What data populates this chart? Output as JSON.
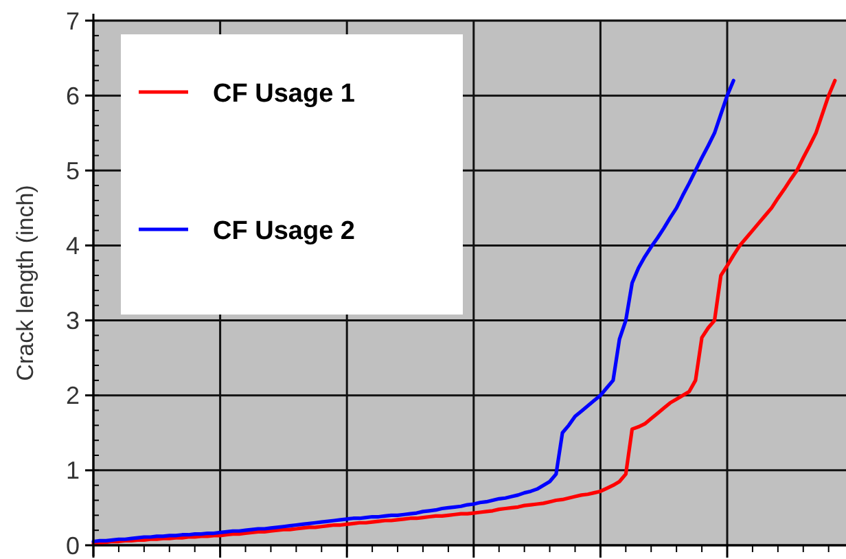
{
  "chart_data": {
    "type": "line",
    "ylabel": "Crack length (inch)",
    "categories": [
      null,
      null,
      null,
      null,
      null,
      null,
      null,
      null,
      null,
      null,
      null,
      null,
      null,
      null,
      null,
      null,
      null,
      null,
      null,
      null,
      null,
      null,
      null,
      null,
      null,
      null,
      null,
      null,
      null,
      null,
      null,
      null,
      null,
      null,
      null,
      null,
      null,
      null,
      null,
      null,
      null,
      null,
      null,
      null,
      null,
      null,
      null,
      null,
      null,
      null,
      null,
      null,
      null,
      null,
      null,
      null,
      null,
      null,
      null,
      null,
      null,
      null,
      null,
      null,
      null,
      null,
      null,
      null,
      null,
      null,
      null,
      null,
      null,
      null,
      null,
      null,
      null,
      null,
      null,
      null,
      null,
      null,
      null,
      null,
      null,
      null,
      null,
      null,
      null,
      null,
      null,
      null,
      null,
      null,
      null,
      null,
      null,
      null,
      null,
      null,
      null,
      null,
      null,
      null,
      null,
      null,
      null,
      null,
      null,
      null,
      null,
      null,
      null,
      null,
      null,
      null,
      null,
      null,
      null
    ],
    "series": [
      {
        "name": "CF Usage 1",
        "color": "#ff0000",
        "values": [
          0.03,
          0.03,
          0.04,
          0.05,
          0.05,
          0.06,
          0.06,
          0.07,
          0.07,
          0.08,
          0.08,
          0.09,
          0.09,
          0.1,
          0.1,
          0.11,
          0.11,
          0.12,
          0.12,
          0.13,
          0.13,
          0.14,
          0.15,
          0.15,
          0.16,
          0.17,
          0.18,
          0.18,
          0.19,
          0.2,
          0.21,
          0.21,
          0.22,
          0.23,
          0.24,
          0.24,
          0.25,
          0.26,
          0.27,
          0.27,
          0.28,
          0.29,
          0.3,
          0.3,
          0.31,
          0.32,
          0.33,
          0.33,
          0.34,
          0.35,
          0.36,
          0.36,
          0.37,
          0.38,
          0.39,
          0.39,
          0.4,
          0.41,
          0.42,
          0.42,
          0.43,
          0.44,
          0.45,
          0.46,
          0.48,
          0.49,
          0.5,
          0.51,
          0.53,
          0.54,
          0.55,
          0.56,
          0.58,
          0.6,
          0.61,
          0.63,
          0.65,
          0.67,
          0.68,
          0.7,
          0.72,
          0.76,
          0.8,
          0.85,
          0.95,
          1.55,
          1.58,
          1.62,
          1.69,
          1.76,
          1.83,
          1.9,
          1.95,
          2.0,
          2.05,
          2.2,
          2.77,
          2.9,
          3.0,
          3.6,
          3.73,
          3.87,
          4.0,
          4.1,
          4.2,
          4.3,
          4.4,
          4.5,
          4.63,
          4.75,
          4.88,
          5.0,
          5.17,
          5.33,
          5.5,
          5.75,
          6.0,
          6.2,
          null
        ]
      },
      {
        "name": "CF Usage 2",
        "color": "#0000ff",
        "values": [
          0.05,
          0.06,
          0.06,
          0.07,
          0.08,
          0.08,
          0.09,
          0.1,
          0.11,
          0.11,
          0.12,
          0.12,
          0.13,
          0.13,
          0.14,
          0.14,
          0.15,
          0.15,
          0.16,
          0.16,
          0.17,
          0.18,
          0.19,
          0.19,
          0.2,
          0.21,
          0.22,
          0.22,
          0.23,
          0.24,
          0.25,
          0.26,
          0.27,
          0.28,
          0.29,
          0.3,
          0.31,
          0.32,
          0.33,
          0.34,
          0.35,
          0.36,
          0.36,
          0.37,
          0.38,
          0.38,
          0.39,
          0.4,
          0.4,
          0.41,
          0.42,
          0.43,
          0.45,
          0.46,
          0.47,
          0.49,
          0.5,
          0.51,
          0.52,
          0.54,
          0.55,
          0.57,
          0.58,
          0.6,
          0.62,
          0.63,
          0.65,
          0.67,
          0.7,
          0.72,
          0.75,
          0.8,
          0.85,
          0.95,
          1.5,
          1.6,
          1.72,
          1.79,
          1.86,
          1.93,
          2.0,
          2.1,
          2.2,
          2.75,
          3.0,
          3.5,
          3.7,
          3.85,
          3.98,
          4.1,
          4.23,
          4.37,
          4.5,
          4.67,
          4.83,
          5.0,
          5.17,
          5.33,
          5.5,
          5.75,
          6.0,
          6.2,
          null,
          null,
          null,
          null,
          null,
          null,
          null,
          null,
          null,
          null,
          null,
          null,
          null,
          null,
          null,
          null,
          null
        ]
      }
    ],
    "ylim": [
      0,
      7
    ],
    "yticks": [
      0,
      1,
      2,
      3,
      4,
      5,
      6,
      7
    ],
    "grid": true,
    "legend": "top left",
    "marker": "none",
    "line_style": "solid"
  }
}
